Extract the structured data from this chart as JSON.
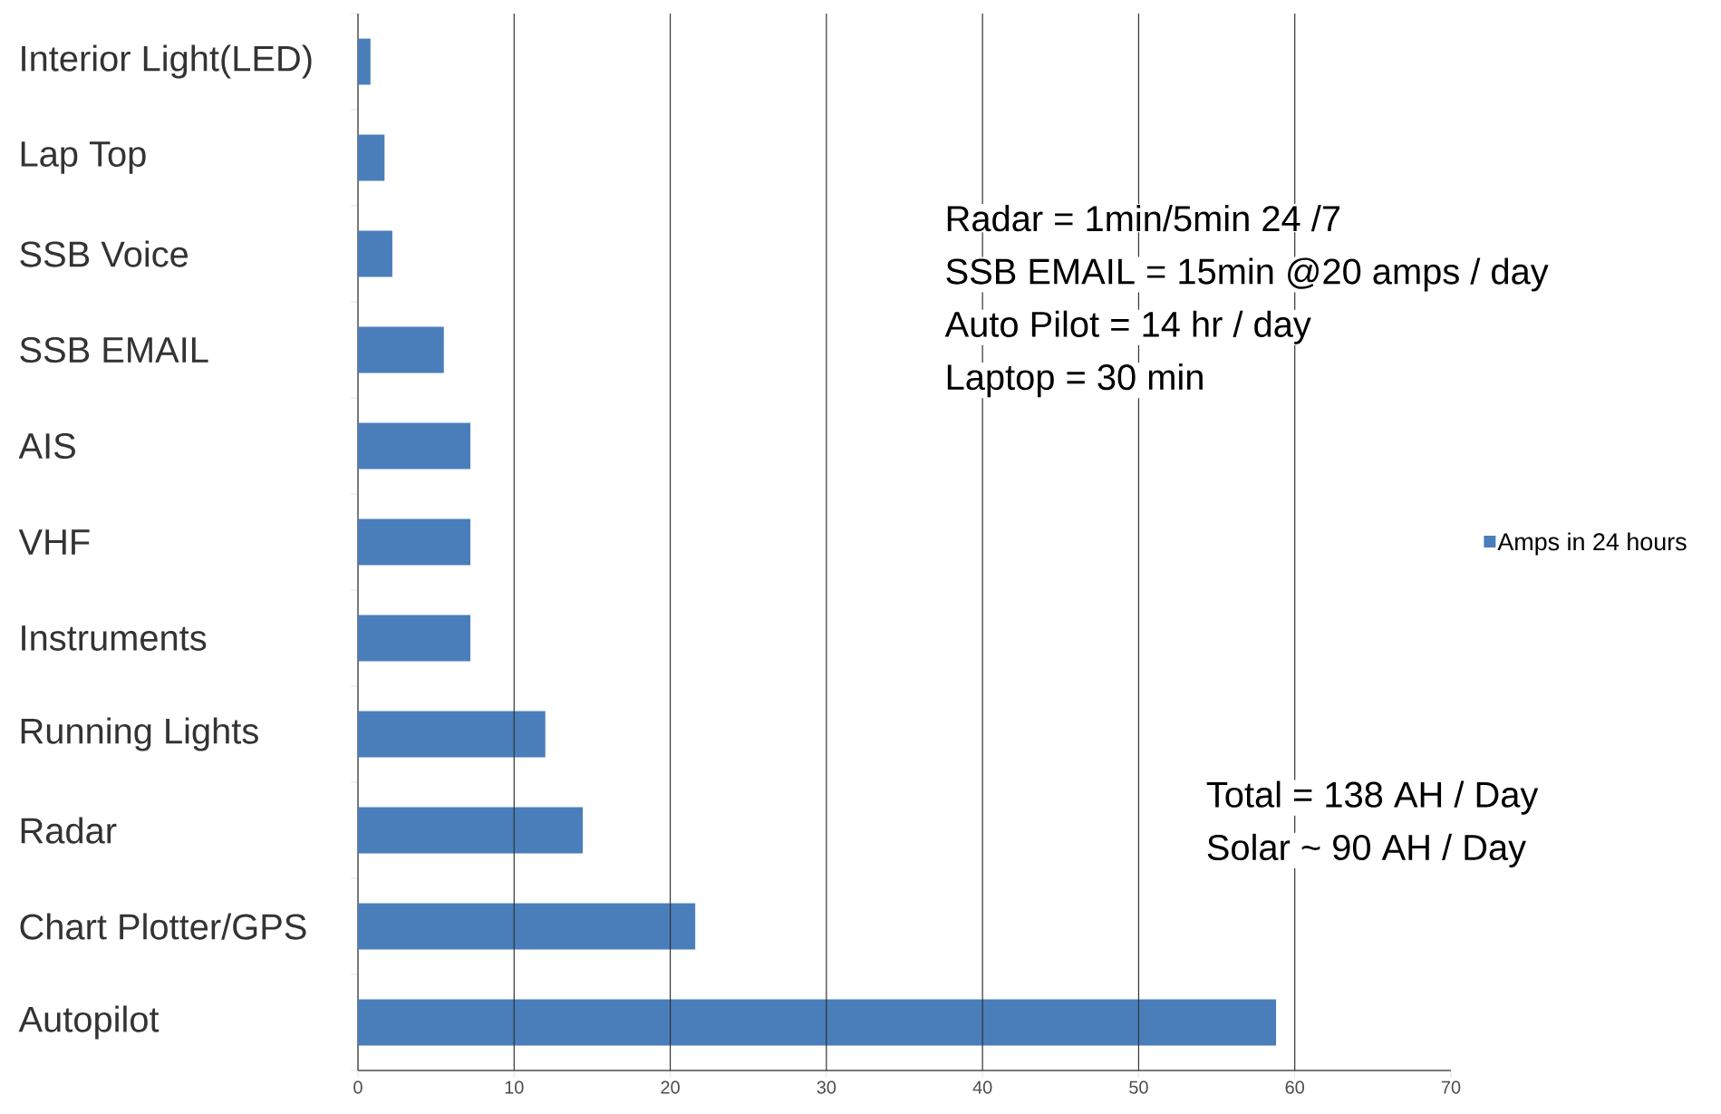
{
  "chart_data": {
    "type": "bar",
    "orientation": "horizontal",
    "categories": [
      "Interior Light(LED)",
      "Lap Top",
      "SSB Voice",
      "SSB EMAIL",
      "AIS",
      "VHF",
      "Instruments",
      "Running Lights",
      "Radar",
      "Chart Plotter/GPS",
      "Autopilot"
    ],
    "series": [
      {
        "name": "Amps in 24 hours",
        "color": "#4a7ebb",
        "values": [
          0.8,
          1.7,
          2.2,
          5.5,
          7.2,
          7.2,
          7.2,
          12,
          14.4,
          21.6,
          58.8
        ]
      }
    ],
    "xlim": [
      0,
      70
    ],
    "xticks": [
      0,
      10,
      20,
      30,
      40,
      50,
      60,
      70
    ],
    "grid": "x",
    "legend": "right",
    "annotations": [
      "Radar = 1min/5min 24 /7",
      "SSB EMAIL = 15min @20 amps / day",
      "Auto Pilot = 14 hr / day",
      "Laptop = 30 min",
      "Total = 138 AH / Day",
      "Solar ~ 90 AH / Day"
    ]
  }
}
